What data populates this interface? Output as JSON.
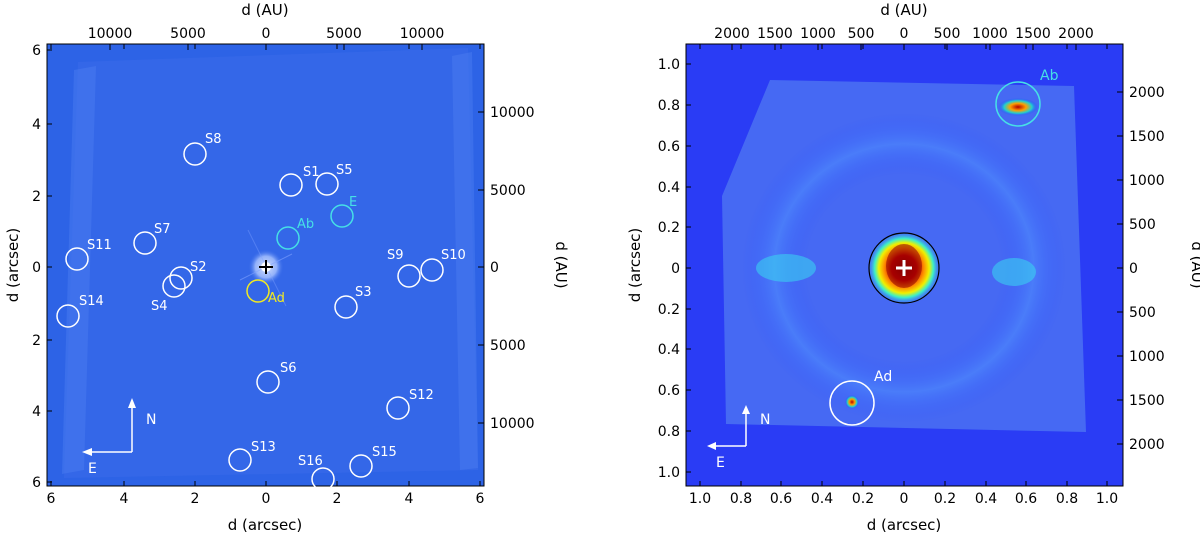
{
  "chart_data": [
    {
      "type": "image",
      "xlabel": "d (arcsec)",
      "ylabel_left": "d (arcsec)",
      "x2label": "d (AU)",
      "y2label": "d (AU)",
      "arcsec_ticks": [
        "6",
        "4",
        "2",
        "0",
        "2",
        "4",
        "6"
      ],
      "x_arcsec_ticks": [
        "6",
        "4",
        "2",
        "0",
        "2",
        "4",
        "6"
      ],
      "y_arcsec_ticks": [
        "6",
        "4",
        "2",
        "0",
        "2",
        "4",
        "6"
      ],
      "x_au_ticks": [
        "10000",
        "5000",
        "0",
        "5000",
        "10000"
      ],
      "y_au_ticks": [
        "10000",
        "5000",
        "0",
        "5000",
        "10000"
      ],
      "compass": {
        "north": "N",
        "east": "E"
      },
      "sources": [
        {
          "name": "S1",
          "color": "#ffffff"
        },
        {
          "name": "S2",
          "color": "#ffffff"
        },
        {
          "name": "S3",
          "color": "#ffffff"
        },
        {
          "name": "S4",
          "color": "#ffffff"
        },
        {
          "name": "S5",
          "color": "#ffffff"
        },
        {
          "name": "S6",
          "color": "#ffffff"
        },
        {
          "name": "S7",
          "color": "#ffffff"
        },
        {
          "name": "S8",
          "color": "#ffffff"
        },
        {
          "name": "S9",
          "color": "#ffffff"
        },
        {
          "name": "S10",
          "color": "#ffffff"
        },
        {
          "name": "S11",
          "color": "#ffffff"
        },
        {
          "name": "S12",
          "color": "#ffffff"
        },
        {
          "name": "S13",
          "color": "#ffffff"
        },
        {
          "name": "S14",
          "color": "#ffffff"
        },
        {
          "name": "S15",
          "color": "#ffffff"
        },
        {
          "name": "S16",
          "color": "#ffffff"
        },
        {
          "name": "Ab",
          "color": "#46e0e6"
        },
        {
          "name": "E",
          "color": "#46e0e6"
        },
        {
          "name": "Ad",
          "color": "#f2ea1f"
        }
      ]
    },
    {
      "type": "image",
      "xlabel": "d (arcsec)",
      "ylabel_left": "d (arcsec)",
      "x2label": "d (AU)",
      "y2label": "d (AU)",
      "x_arcsec_ticks": [
        "1.0",
        "0.8",
        "0.6",
        "0.4",
        "0.2",
        "0",
        "0.2",
        "0.4",
        "0.6",
        "0.8",
        "1.0"
      ],
      "y_arcsec_ticks": [
        "1.0",
        "0.8",
        "0.6",
        "0.4",
        "0.2",
        "0",
        "0.2",
        "0.4",
        "0.6",
        "0.8",
        "1.0"
      ],
      "x_au_ticks": [
        "2000",
        "1500",
        "1000",
        "500",
        "0",
        "500",
        "1000",
        "1500",
        "2000"
      ],
      "y_au_ticks": [
        "2000",
        "1500",
        "1000",
        "500",
        "0",
        "500",
        "1000",
        "1500",
        "2000"
      ],
      "compass": {
        "north": "N",
        "east": "E"
      },
      "sources": [
        {
          "name": "Ab",
          "color": "#46e0e6"
        },
        {
          "name": "Ad",
          "color": "#ffffff"
        }
      ]
    }
  ]
}
